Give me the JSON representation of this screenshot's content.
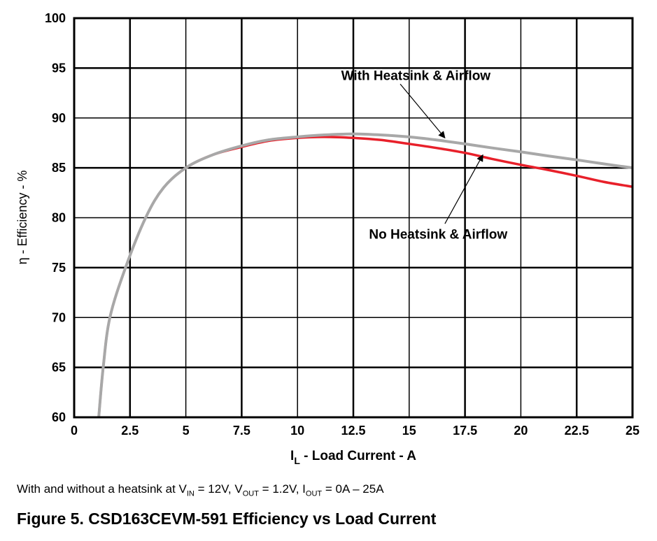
{
  "chart_data": {
    "type": "line",
    "title": "Figure 5. CSD163CEVM-591 Efficiency vs Load Current",
    "xlabel_main": "I",
    "xlabel_sub": "L",
    "xlabel_rest": " - Load Current - A",
    "ylabel": "η - Efficiency - %",
    "xlim": [
      0,
      25
    ],
    "ylim": [
      60,
      100
    ],
    "grid": true,
    "xticks": [
      0,
      2.5,
      5,
      7.5,
      10,
      12.5,
      15,
      17.5,
      20,
      22.5,
      25
    ],
    "xtick_labels": [
      "0",
      "2.5",
      "5",
      "7.5",
      "10",
      "12.5",
      "15",
      "17.5",
      "20",
      "22.5",
      "25"
    ],
    "yticks": [
      60,
      65,
      70,
      75,
      80,
      85,
      90,
      95,
      100
    ],
    "ytick_labels": [
      "60",
      "65",
      "70",
      "75",
      "80",
      "85",
      "90",
      "95",
      "100"
    ],
    "series": [
      {
        "name": "No Heatsink & Airflow",
        "color": "#e8202a",
        "x": [
          1.1,
          1.3,
          1.6,
          2.3,
          3.2,
          4.0,
          5.0,
          6.2,
          7.5,
          8.7,
          10,
          11.2,
          12.5,
          13.7,
          15,
          16.2,
          17.5,
          18.7,
          20,
          21.2,
          22.5,
          23.7,
          25
        ],
        "y": [
          60,
          65,
          70,
          75,
          80,
          83.0,
          85.0,
          86.3,
          87.1,
          87.7,
          88.0,
          88.1,
          88.0,
          87.8,
          87.4,
          87.0,
          86.5,
          85.9,
          85.3,
          84.8,
          84.2,
          83.6,
          83.1
        ]
      },
      {
        "name": "With Heatsink & Airflow",
        "color": "#a8a8a8",
        "x": [
          1.1,
          1.3,
          1.6,
          2.3,
          3.2,
          4.0,
          5.0,
          6.2,
          7.5,
          8.7,
          10,
          11.2,
          12.5,
          13.7,
          15,
          16.2,
          17.5,
          18.7,
          20,
          21.2,
          22.5,
          23.7,
          25
        ],
        "y": [
          60,
          65,
          70,
          75,
          80,
          83.0,
          85.0,
          86.3,
          87.2,
          87.8,
          88.1,
          88.3,
          88.4,
          88.3,
          88.1,
          87.8,
          87.4,
          87.0,
          86.6,
          86.2,
          85.8,
          85.4,
          85.0
        ]
      }
    ],
    "annotations": [
      {
        "text": "With Heatsink & Airflow",
        "label_at": [
          15.3,
          93.8
        ],
        "arrow_from": [
          14.6,
          93.4
        ],
        "arrow_to": [
          16.6,
          88.0
        ]
      },
      {
        "text": "No Heatsink & Airflow",
        "label_at": [
          16.3,
          77.9
        ],
        "arrow_from": [
          16.6,
          79.4
        ],
        "arrow_to": [
          18.3,
          86.3
        ]
      }
    ]
  },
  "caption": {
    "prefix": "With and without a heatsink at V",
    "vin_sub": "IN",
    "vin_rest": " = 12V, V",
    "vout_sub": "OUT",
    "vout_rest": " = 1.2V, I",
    "iout_sub": "OUT",
    "iout_rest": " = 0A – 25A"
  }
}
